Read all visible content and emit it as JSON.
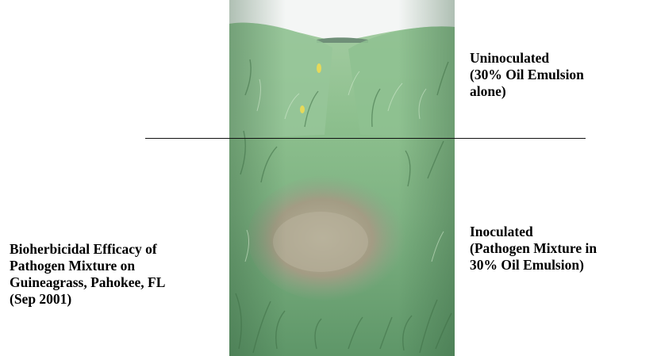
{
  "labels": {
    "uninoculated": [
      "Uninoculated",
      "(30% Oil Emulsion",
      "alone)"
    ],
    "inoculated": [
      "Inoculated",
      "(Pathogen Mixture in",
      "30% Oil Emulsion)"
    ]
  },
  "caption": [
    "Bioherbicidal Efficacy of",
    "Pathogen Mixture on",
    "Guineagrass, Pahokee, FL",
    "(Sep 2001)"
  ],
  "colors": {
    "sky": "#f4f6f5",
    "grass_light": "#9cc79a",
    "grass_dark": "#3f6f46",
    "soil": "#a6a08a",
    "divider": "#111111"
  }
}
